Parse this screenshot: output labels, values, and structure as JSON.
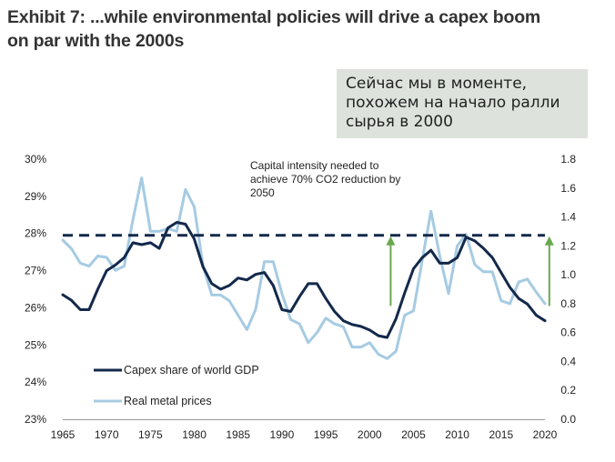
{
  "title_line1": "Exhibit 7: ...while environmental policies will drive a capex boom",
  "title_line2": "on par with the 2000s",
  "note": {
    "line1": "Сейчас мы в моменте,",
    "line2": "похожем на начало ралли",
    "line3": "сырья в 2000"
  },
  "chart_data": {
    "type": "line",
    "title": "Exhibit 7: ...while environmental policies will drive a capex boom on par with the 2000s",
    "x_ticks": [
      "1965",
      "1970",
      "1975",
      "1980",
      "1985",
      "1990",
      "1995",
      "2000",
      "2005",
      "2010",
      "2015",
      "2020"
    ],
    "left_axis": {
      "ticks": [
        "30%",
        "29%",
        "28%",
        "27%",
        "26%",
        "25%",
        "24%",
        "23%"
      ],
      "range": [
        23,
        30
      ]
    },
    "right_axis": {
      "ticks": [
        "1.8",
        "1.6",
        "1.4",
        "1.2",
        "1.0",
        "0.8",
        "0.6",
        "0.4",
        "0.2",
        "0.0"
      ],
      "range": [
        0,
        1.8
      ]
    },
    "annotation": {
      "line1": "Capital intensity needed  to",
      "line2": "achieve 70% CO2 reduction by",
      "line3": "2050"
    },
    "reference_line": {
      "axis": "left",
      "value": 27.95,
      "style": "dashed"
    },
    "arrows": [
      {
        "x": 2002.4,
        "from": 26.05,
        "to": 27.95
      },
      {
        "x": 2020.5,
        "from": 26.05,
        "to": 27.95
      }
    ],
    "series": [
      {
        "name": "Capex share of world GDP",
        "axis": "left",
        "color": "#13294b",
        "points": [
          [
            1965,
            26.35
          ],
          [
            1966,
            26.2
          ],
          [
            1967,
            25.95
          ],
          [
            1968,
            25.95
          ],
          [
            1969,
            26.5
          ],
          [
            1970,
            27.0
          ],
          [
            1971,
            27.15
          ],
          [
            1972,
            27.35
          ],
          [
            1973,
            27.75
          ],
          [
            1974,
            27.7
          ],
          [
            1975,
            27.75
          ],
          [
            1976,
            27.6
          ],
          [
            1977,
            28.15
          ],
          [
            1978,
            28.3
          ],
          [
            1979,
            28.25
          ],
          [
            1980,
            27.85
          ],
          [
            1981,
            27.1
          ],
          [
            1982,
            26.65
          ],
          [
            1983,
            26.5
          ],
          [
            1984,
            26.6
          ],
          [
            1985,
            26.8
          ],
          [
            1986,
            26.75
          ],
          [
            1987,
            26.9
          ],
          [
            1988,
            26.95
          ],
          [
            1989,
            26.6
          ],
          [
            1990,
            25.95
          ],
          [
            1991,
            25.9
          ],
          [
            1992,
            26.3
          ],
          [
            1993,
            26.65
          ],
          [
            1994,
            26.65
          ],
          [
            1995,
            26.25
          ],
          [
            1996,
            25.9
          ],
          [
            1997,
            25.65
          ],
          [
            1998,
            25.55
          ],
          [
            1999,
            25.5
          ],
          [
            2000,
            25.4
          ],
          [
            2001,
            25.25
          ],
          [
            2002,
            25.2
          ],
          [
            2003,
            25.7
          ],
          [
            2004,
            26.4
          ],
          [
            2005,
            27.05
          ],
          [
            2006,
            27.35
          ],
          [
            2007,
            27.55
          ],
          [
            2008,
            27.2
          ],
          [
            2009,
            27.2
          ],
          [
            2010,
            27.35
          ],
          [
            2011,
            27.9
          ],
          [
            2012,
            27.8
          ],
          [
            2013,
            27.6
          ],
          [
            2014,
            27.35
          ],
          [
            2015,
            26.95
          ],
          [
            2016,
            26.55
          ],
          [
            2017,
            26.25
          ],
          [
            2018,
            26.1
          ],
          [
            2019,
            25.8
          ],
          [
            2020,
            25.65
          ]
        ]
      },
      {
        "name": "Real metal prices",
        "axis": "right",
        "color": "#a6cbe3",
        "points": [
          [
            1965,
            1.24
          ],
          [
            1966,
            1.18
          ],
          [
            1967,
            1.08
          ],
          [
            1968,
            1.06
          ],
          [
            1969,
            1.13
          ],
          [
            1970,
            1.12
          ],
          [
            1971,
            1.03
          ],
          [
            1972,
            1.06
          ],
          [
            1973,
            1.38
          ],
          [
            1974,
            1.67
          ],
          [
            1975,
            1.3
          ],
          [
            1976,
            1.3
          ],
          [
            1977,
            1.32
          ],
          [
            1978,
            1.3
          ],
          [
            1979,
            1.59
          ],
          [
            1980,
            1.47
          ],
          [
            1981,
            1.06
          ],
          [
            1982,
            0.86
          ],
          [
            1983,
            0.86
          ],
          [
            1984,
            0.82
          ],
          [
            1985,
            0.72
          ],
          [
            1986,
            0.62
          ],
          [
            1987,
            0.76
          ],
          [
            1988,
            1.09
          ],
          [
            1989,
            1.09
          ],
          [
            1990,
            0.87
          ],
          [
            1991,
            0.69
          ],
          [
            1992,
            0.66
          ],
          [
            1993,
            0.53
          ],
          [
            1994,
            0.6
          ],
          [
            1995,
            0.7
          ],
          [
            1996,
            0.66
          ],
          [
            1997,
            0.64
          ],
          [
            1998,
            0.5
          ],
          [
            1999,
            0.5
          ],
          [
            2000,
            0.53
          ],
          [
            2001,
            0.45
          ],
          [
            2002,
            0.42
          ],
          [
            2003,
            0.47
          ],
          [
            2004,
            0.72
          ],
          [
            2005,
            0.75
          ],
          [
            2006,
            1.1
          ],
          [
            2007,
            1.44
          ],
          [
            2008,
            1.13
          ],
          [
            2009,
            0.87
          ],
          [
            2010,
            1.2
          ],
          [
            2011,
            1.28
          ],
          [
            2012,
            1.07
          ],
          [
            2013,
            1.02
          ],
          [
            2014,
            1.02
          ],
          [
            2015,
            0.82
          ],
          [
            2016,
            0.8
          ],
          [
            2017,
            0.95
          ],
          [
            2018,
            0.97
          ],
          [
            2019,
            0.88
          ],
          [
            2020,
            0.8
          ]
        ]
      }
    ],
    "legend_position": "bottom-left"
  }
}
